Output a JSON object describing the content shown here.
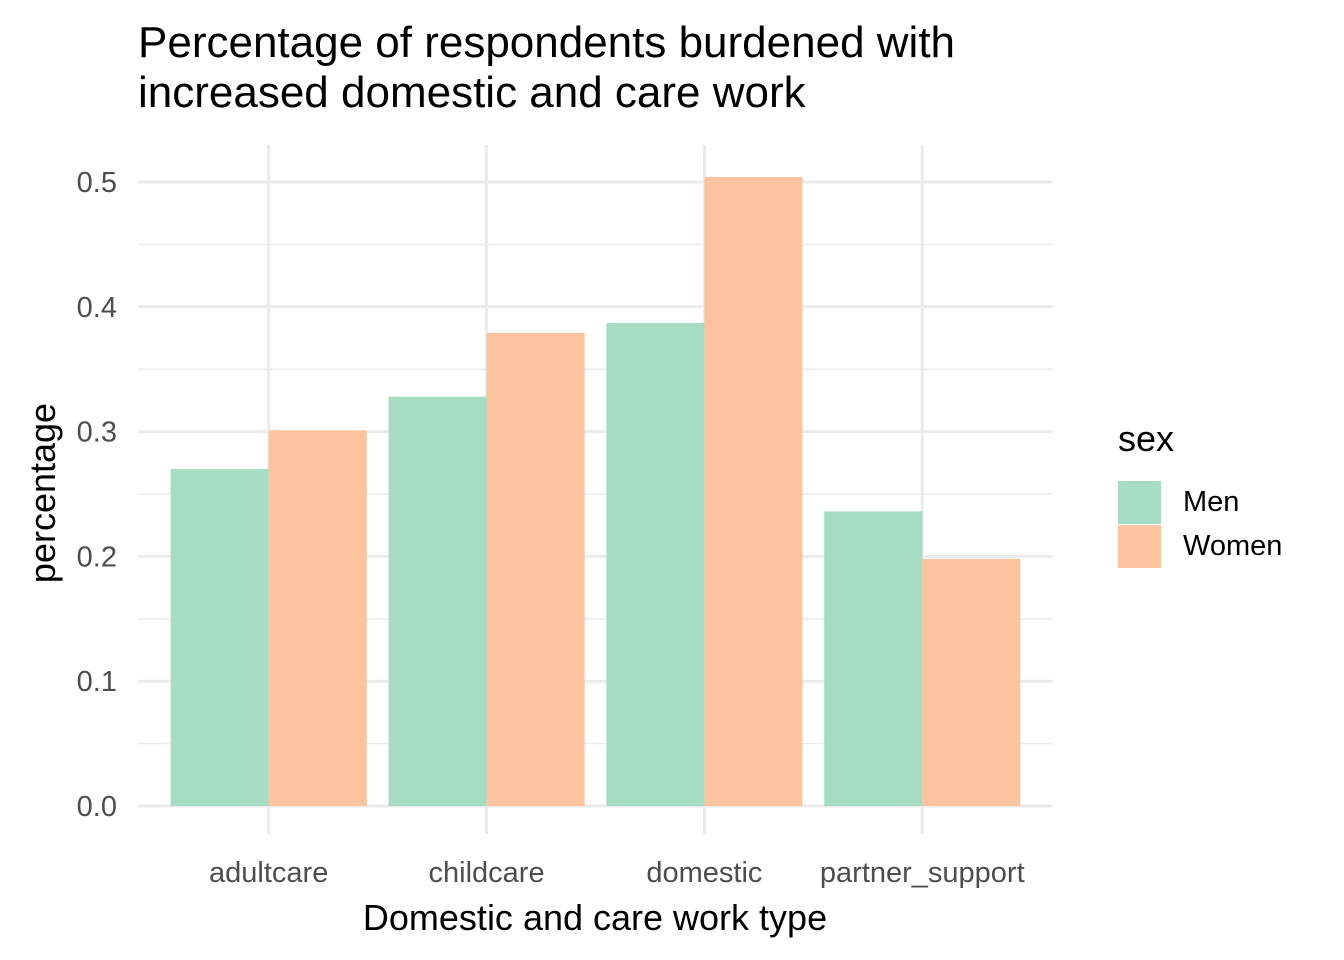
{
  "chart_data": {
    "type": "bar",
    "title_lines": [
      "Percentage of respondents burdened with",
      "increased domestic and care work"
    ],
    "xlabel": "Domestic and care work type",
    "ylabel": "percentage",
    "categories": [
      "adultcare",
      "childcare",
      "domestic",
      "partner_support"
    ],
    "series": [
      {
        "name": "Men",
        "color": "#A6DCC3",
        "values": [
          0.27,
          0.328,
          0.387,
          0.236
        ]
      },
      {
        "name": "Women",
        "color": "#FBC39E",
        "values": [
          0.301,
          0.379,
          0.504,
          0.198
        ]
      }
    ],
    "ylim": [
      0,
      0.5
    ],
    "yticks": [
      "0.0",
      "0.1",
      "0.2",
      "0.3",
      "0.4",
      "0.5"
    ],
    "grid": true,
    "legend": {
      "title": "sex",
      "position": "right"
    }
  }
}
